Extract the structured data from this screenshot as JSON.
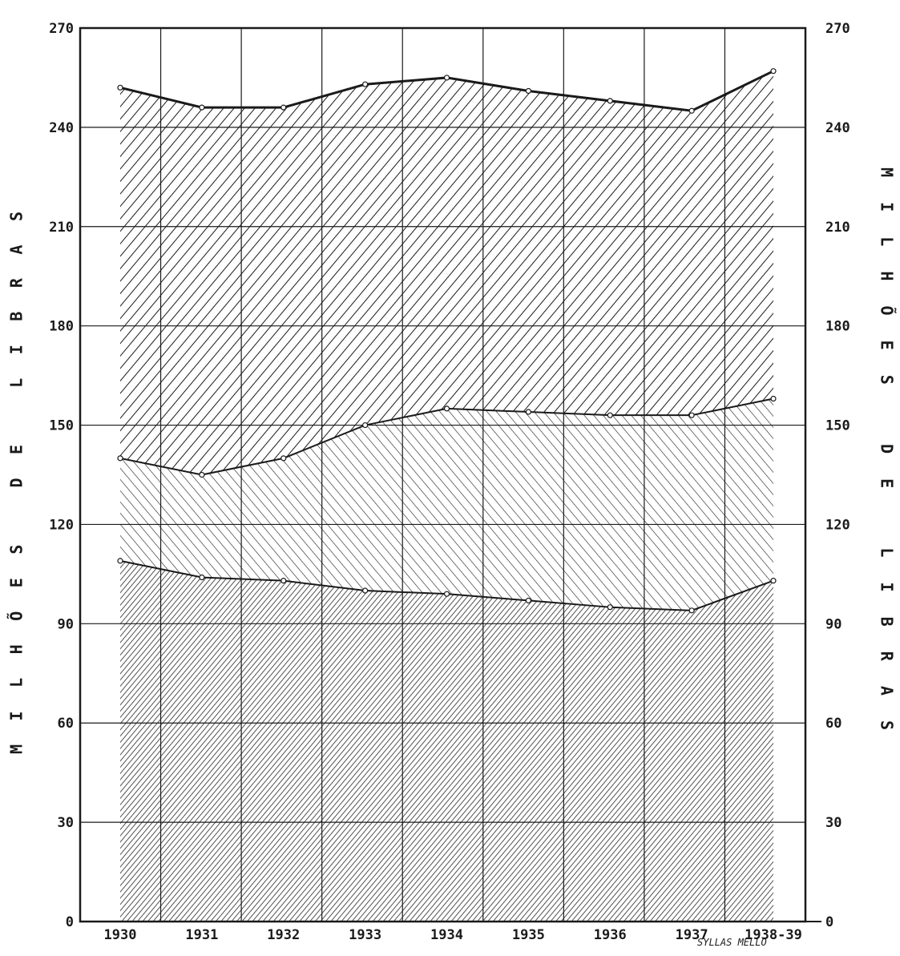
{
  "chart_data": {
    "type": "area",
    "categories": [
      "1930",
      "1931",
      "1932",
      "1933",
      "1934",
      "1935",
      "1936",
      "1937",
      "1938-39"
    ],
    "series": [
      {
        "values": [
          109,
          104,
          103,
          100,
          99,
          97,
          95,
          94,
          103
        ]
      },
      {
        "values": [
          140,
          135,
          140,
          150,
          155,
          154,
          153,
          153,
          158
        ]
      },
      {
        "values": [
          252,
          246,
          246,
          253,
          255,
          251,
          248,
          245,
          257
        ]
      }
    ],
    "ylabel": "MILHÕES DE LIBRAS",
    "ylabel_right": "MILHÕES DE LIBRAS",
    "ylim": [
      0,
      270
    ],
    "yticks": [
      "0",
      "30",
      "60",
      "90",
      "120",
      "150",
      "180",
      "210",
      "240",
      "270"
    ],
    "credit": "SYLLAS MELLO",
    "grid": true,
    "colors": {
      "ink": "#1a1a1a",
      "paper": "#ffffff"
    }
  }
}
